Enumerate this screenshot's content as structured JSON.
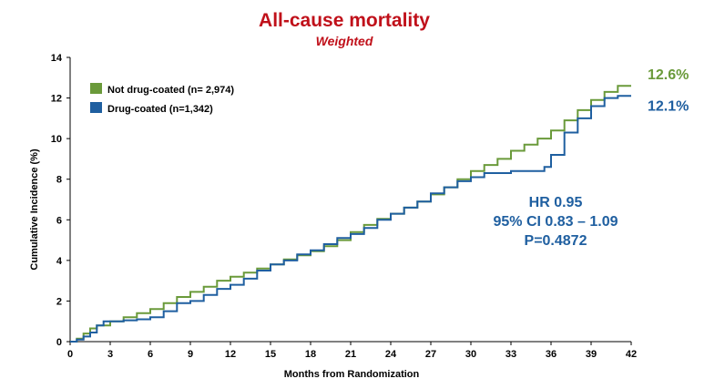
{
  "chart_data": {
    "type": "line",
    "title": "All-cause mortality",
    "subtitle": "Weighted",
    "xlabel": "Months from Randomization",
    "ylabel": "Cumulative Incidence (%)",
    "xlim": [
      0,
      42
    ],
    "ylim": [
      0,
      14
    ],
    "x_ticks": [
      0,
      3,
      6,
      9,
      12,
      15,
      18,
      21,
      24,
      27,
      30,
      33,
      36,
      39,
      42
    ],
    "y_ticks": [
      0,
      2,
      4,
      6,
      8,
      10,
      12,
      14
    ],
    "grid": false,
    "legend_position": "top-left",
    "series": [
      {
        "name": "Not drug-coated (n= 2,974)",
        "color": "#6a9a3a",
        "end_label": "12.6%",
        "x": [
          0,
          0.5,
          1,
          1.5,
          2,
          3,
          4,
          5,
          6,
          7,
          8,
          9,
          10,
          11,
          12,
          13,
          14,
          15,
          16,
          17,
          18,
          19,
          20,
          21,
          22,
          23,
          24,
          25,
          26,
          27,
          28,
          29,
          30,
          31,
          32,
          33,
          34,
          35,
          36,
          37,
          38,
          39,
          40,
          41,
          42
        ],
        "values": [
          0,
          0.15,
          0.4,
          0.65,
          0.8,
          1.0,
          1.2,
          1.4,
          1.6,
          1.9,
          2.2,
          2.45,
          2.7,
          3.0,
          3.2,
          3.4,
          3.6,
          3.8,
          4.05,
          4.25,
          4.45,
          4.7,
          5.0,
          5.4,
          5.75,
          6.05,
          6.3,
          6.6,
          6.9,
          7.25,
          7.6,
          8.0,
          8.4,
          8.7,
          9.0,
          9.4,
          9.7,
          10.0,
          10.4,
          10.9,
          11.4,
          11.9,
          12.3,
          12.6,
          12.6
        ]
      },
      {
        "name": "Drug-coated (n=1,342)",
        "color": "#1f5fa0",
        "end_label": "12.1%",
        "x": [
          0,
          0.5,
          1,
          1.5,
          2,
          2.5,
          3,
          4,
          5,
          6,
          7,
          8,
          9,
          10,
          11,
          12,
          13,
          14,
          15,
          16,
          17,
          18,
          19,
          20,
          21,
          22,
          23,
          24,
          25,
          26,
          27,
          28,
          29,
          30,
          31,
          32,
          33,
          34,
          35,
          35.5,
          36,
          37,
          38,
          39,
          40,
          41,
          42
        ],
        "values": [
          0,
          0.1,
          0.25,
          0.45,
          0.8,
          1.0,
          1.0,
          1.05,
          1.1,
          1.2,
          1.5,
          1.9,
          2.0,
          2.3,
          2.6,
          2.8,
          3.1,
          3.5,
          3.8,
          4.0,
          4.3,
          4.5,
          4.8,
          5.1,
          5.3,
          5.6,
          6.0,
          6.3,
          6.6,
          6.9,
          7.3,
          7.6,
          7.9,
          8.1,
          8.3,
          8.3,
          8.4,
          8.4,
          8.4,
          8.6,
          9.2,
          10.3,
          11.0,
          11.6,
          12.0,
          12.1,
          12.1
        ]
      }
    ],
    "annotation": {
      "lines": [
        "HR 0.95",
        "95% CI 0.83 – 1.09",
        "P=0.4872"
      ],
      "color": "#1f5fa0"
    },
    "colors": {
      "title": "#c0101a",
      "axis": "#000000"
    }
  }
}
